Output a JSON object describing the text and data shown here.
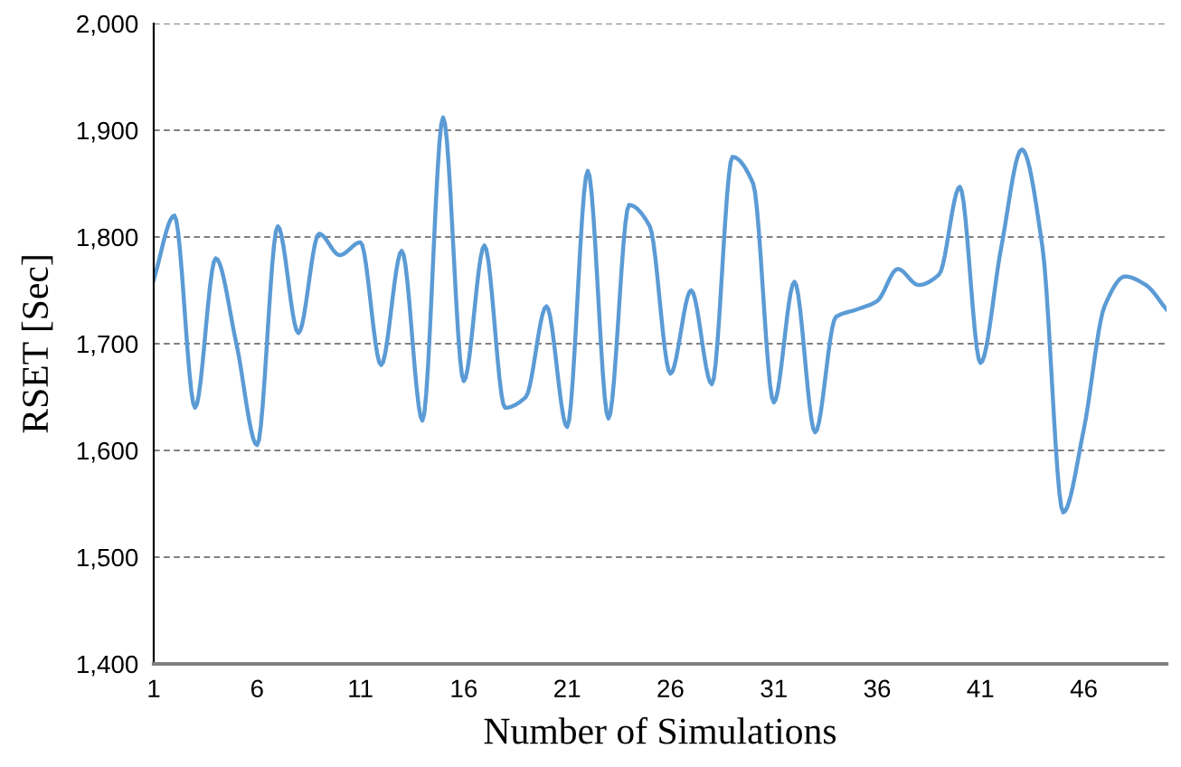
{
  "chart_data": {
    "type": "line",
    "xlabel": "Number of Simulations",
    "ylabel": "RSET [Sec]",
    "x": [
      1,
      2,
      3,
      4,
      5,
      6,
      7,
      8,
      9,
      10,
      11,
      12,
      13,
      14,
      15,
      16,
      17,
      18,
      19,
      20,
      21,
      22,
      23,
      24,
      25,
      26,
      27,
      28,
      29,
      30,
      31,
      32,
      33,
      34,
      35,
      36,
      37,
      38,
      39,
      40,
      41,
      42,
      43,
      44,
      45,
      46,
      47,
      48,
      49,
      50
    ],
    "series": [
      {
        "color": "#5b9bd5",
        "values": [
          1760,
          1820,
          1640,
          1780,
          1700,
          1605,
          1810,
          1710,
          1803,
          1783,
          1795,
          1680,
          1787,
          1628,
          1912,
          1665,
          1792,
          1640,
          1650,
          1735,
          1622,
          1862,
          1630,
          1830,
          1810,
          1672,
          1750,
          1662,
          1875,
          1850,
          1645,
          1758,
          1617,
          1725,
          1732,
          1740,
          1770,
          1755,
          1765,
          1847,
          1682,
          1790,
          1882,
          1790,
          1542,
          1620,
          1735,
          1763,
          1755,
          1732
        ]
      }
    ],
    "xlim": [
      1,
      50
    ],
    "xticks": [
      1,
      6,
      11,
      16,
      21,
      26,
      31,
      36,
      41,
      46
    ],
    "ylim": [
      1400,
      2000
    ],
    "yticks": [
      {
        "value": 1400,
        "label": "1,400"
      },
      {
        "value": 1500,
        "label": "1,500"
      },
      {
        "value": 1600,
        "label": "1,600"
      },
      {
        "value": 1700,
        "label": "1,700"
      },
      {
        "value": 1800,
        "label": "1,800"
      },
      {
        "value": 1900,
        "label": "1,900"
      },
      {
        "value": 2000,
        "label": "2,000"
      }
    ],
    "grid": "y",
    "marker": "none",
    "line_style": "solid"
  }
}
